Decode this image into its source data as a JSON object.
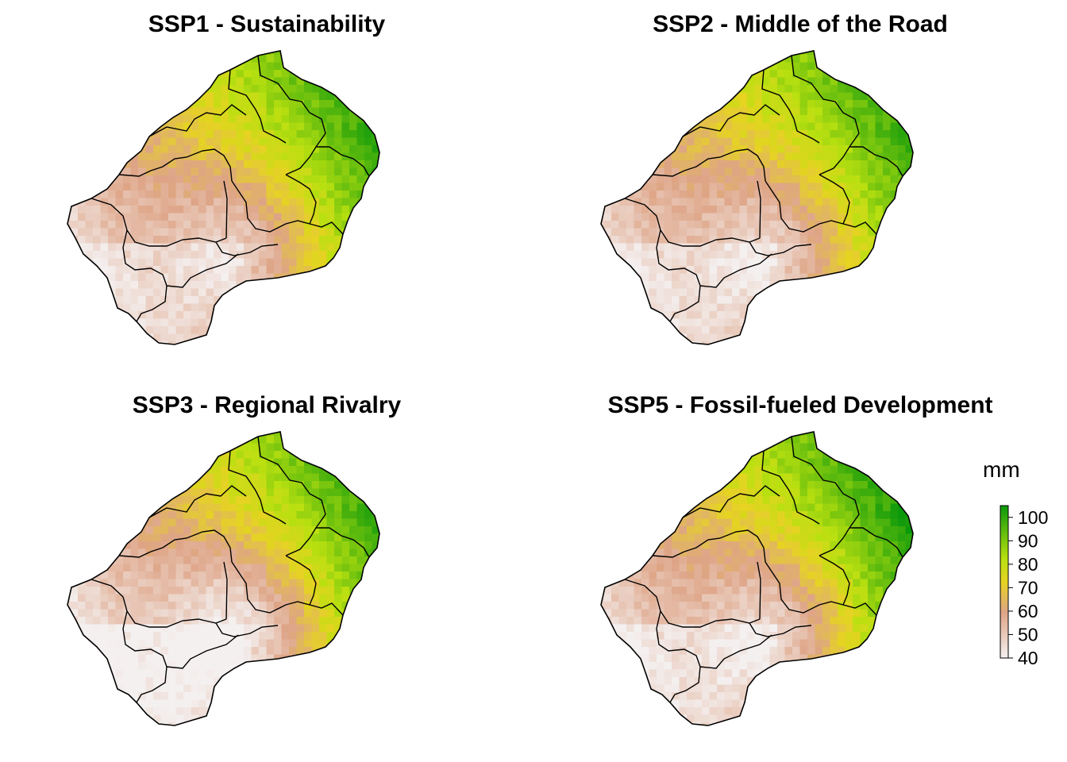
{
  "panels": [
    {
      "title": "SSP1 - Sustainability",
      "wet_east": 0.75,
      "dry_south": 0.55,
      "mid": 0.45
    },
    {
      "title": "SSP2 - Middle of the Road",
      "wet_east": 0.72,
      "dry_south": 0.5,
      "mid": 0.45
    },
    {
      "title": "SSP3 - Regional Rivalry",
      "wet_east": 0.78,
      "dry_south": 0.35,
      "mid": 0.42
    },
    {
      "title": "SSP5 - Fossil-fueled Development",
      "wet_east": 0.8,
      "dry_south": 0.42,
      "mid": 0.47
    }
  ],
  "legend": {
    "title": "mm",
    "ticks": [
      "100",
      "90",
      "80",
      "70",
      "60",
      "50",
      "40"
    ],
    "min": 40,
    "max": 105
  },
  "colors": {
    "low": "#f2eeee",
    "mid_low": "#dea486",
    "mid": "#e8d11a",
    "high": "#0d9a0d"
  }
}
